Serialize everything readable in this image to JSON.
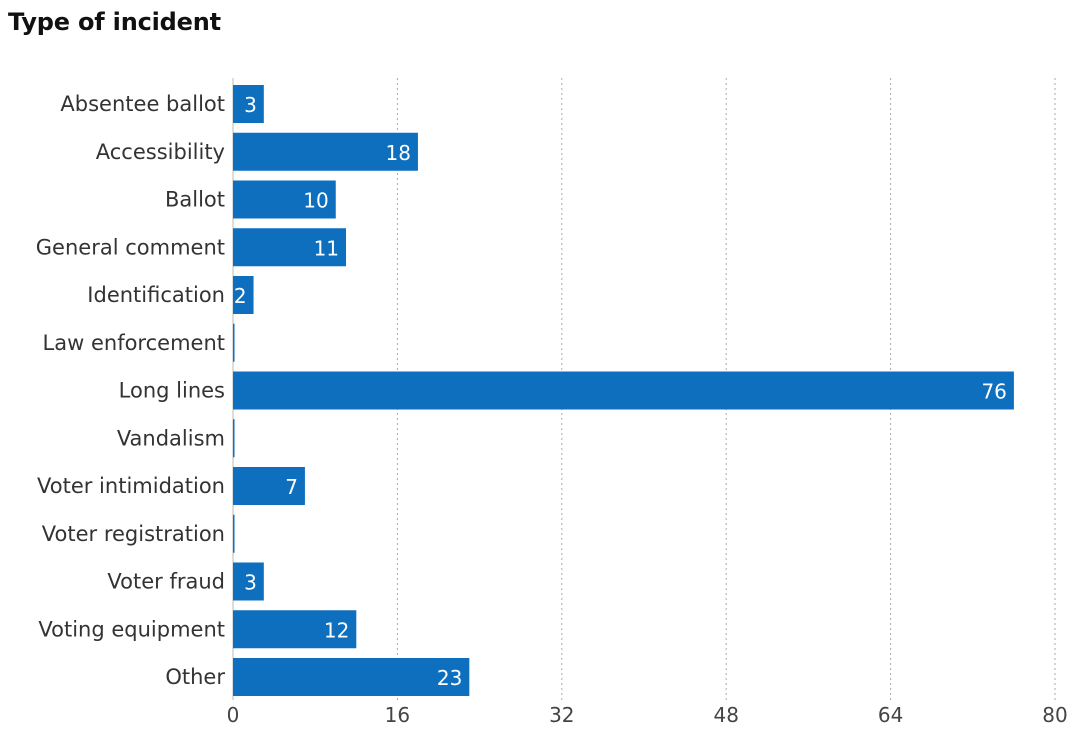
{
  "title": "Type of incident",
  "colors": {
    "bar": "#0e6fbf",
    "value_label": "#ffffff"
  },
  "chart_data": {
    "type": "bar",
    "orientation": "horizontal",
    "title": "Type of incident",
    "xlabel": "",
    "ylabel": "",
    "categories": [
      "Absentee ballot",
      "Accessibility",
      "Ballot",
      "General comment",
      "Identification",
      "Law enforcement",
      "Long lines",
      "Vandalism",
      "Voter intimidation",
      "Voter registration",
      "Voter fraud",
      "Voting equipment",
      "Other"
    ],
    "values": [
      3,
      18,
      10,
      11,
      2,
      0,
      76,
      0,
      7,
      0,
      3,
      12,
      23
    ],
    "value_labels": [
      "3",
      "18",
      "10",
      "11",
      "2",
      "",
      "76",
      "",
      "7",
      "",
      "3",
      "12",
      "23"
    ],
    "xlim": [
      0,
      80
    ],
    "xticks": [
      0,
      16,
      32,
      48,
      64,
      80
    ],
    "grid": true,
    "legend": "none"
  }
}
